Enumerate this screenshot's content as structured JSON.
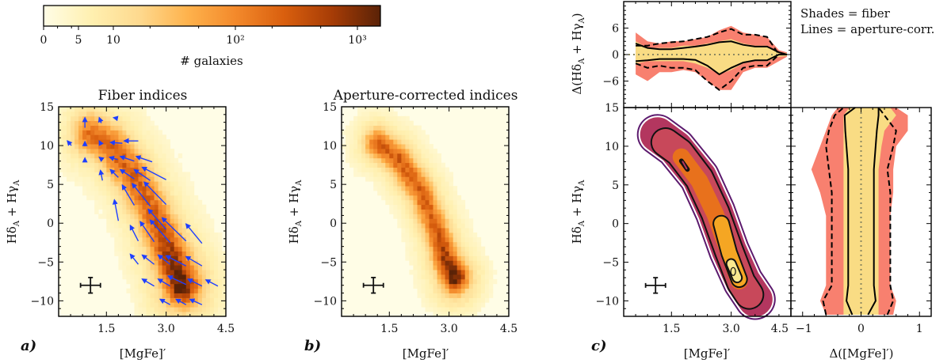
{
  "colorbar": {
    "label": "# galaxies",
    "scale": "symlog",
    "range": [
      0,
      1500
    ],
    "ticks": [
      {
        "value": 0,
        "label": "0"
      },
      {
        "value": 5,
        "label": "5"
      },
      {
        "value": 10,
        "label": "10"
      },
      {
        "value": 100,
        "label": "10²"
      },
      {
        "value": 1000,
        "label": "10³"
      }
    ],
    "colors": [
      "#fffde6",
      "#fff0b0",
      "#fed98e",
      "#feb24c",
      "#f3892b",
      "#d95f0e",
      "#a63c06",
      "#5a2207"
    ]
  },
  "labels": {
    "x": "[MgFe]′",
    "y_a": "Hδ",
    "y_sub_a": "A",
    "y_b": " + Hγ",
    "y_sub_b": "A",
    "dy_open": "Δ(",
    "dy_close": ")",
    "dx": "Δ([MgFe]′)"
  },
  "titles": {
    "a": "Fiber indices",
    "b": "Aperture-corrected indices"
  },
  "panel_letters": {
    "a": "a)",
    "b": "b)",
    "c": "c)"
  },
  "legend": {
    "line1": "Shades = fiber",
    "line2": "Lines = aperture-corr."
  },
  "colors": {
    "arrow": "#1f3fff",
    "band_outer": "#f8806f",
    "band_inner": "#f9dc84",
    "contours": [
      "#5c1a6e",
      "#b3365f",
      "#c8485a",
      "#e8711c",
      "#f5a623",
      "#fbe98f"
    ]
  },
  "chart_data": [
    {
      "panel": "a",
      "type": "heatmap",
      "title": "Fiber indices",
      "xlabel": "[MgFe]′",
      "ylabel": "HδA + HγA",
      "xlim": [
        0.3,
        4.5
      ],
      "ylim": [
        -12,
        15
      ],
      "xticks": [
        {
          "v": 1.5,
          "t": "1.5"
        },
        {
          "v": 3.0,
          "t": "3.0"
        },
        {
          "v": 4.5,
          "t": "4.5"
        }
      ],
      "yticks": [
        {
          "v": 15,
          "t": "15"
        },
        {
          "v": 10,
          "t": "10"
        },
        {
          "v": 5,
          "t": "5"
        },
        {
          "v": 0,
          "t": "0"
        },
        {
          "v": -5,
          "t": "−5"
        },
        {
          "v": -10,
          "t": "−10"
        }
      ],
      "density_ridge": [
        [
          1.1,
          11.5
        ],
        [
          1.6,
          10
        ],
        [
          2.2,
          6
        ],
        [
          2.7,
          1
        ],
        [
          3.1,
          -4
        ],
        [
          3.4,
          -8
        ]
      ],
      "ridge_relative_density": [
        0.55,
        0.6,
        0.6,
        0.62,
        0.8,
        1.0
      ],
      "peak": [
        3.4,
        -8
      ],
      "error_bar": {
        "x": 1.1,
        "y": -8,
        "xerr": 0.25,
        "yerr": 1.0
      },
      "arrows": [
        [
          0.96,
          12.3,
          0,
          1.3
        ],
        [
          1.37,
          12.9,
          -0.05,
          0.7
        ],
        [
          1.78,
          13.5,
          -0.1,
          0.1
        ],
        [
          0.62,
          10.0,
          -0.1,
          0.6
        ],
        [
          0.96,
          9.9,
          0,
          0.6
        ],
        [
          1.37,
          10.1,
          -0.05,
          0.5
        ],
        [
          1.9,
          10.3,
          -0.3,
          0.1
        ],
        [
          2.3,
          10.6,
          -0.35,
          0
        ],
        [
          0.96,
          8.3,
          0,
          0.1
        ],
        [
          1.37,
          8.3,
          -0.05,
          0.2
        ],
        [
          1.78,
          8.2,
          -0.2,
          0.3
        ],
        [
          2.2,
          8.0,
          -0.35,
          0.6
        ],
        [
          2.65,
          7.9,
          -0.4,
          0.7
        ],
        [
          1.4,
          5.5,
          -0.05,
          1.3
        ],
        [
          1.8,
          5.9,
          -0.2,
          1.0
        ],
        [
          2.2,
          5.7,
          -0.35,
          1.2
        ],
        [
          2.6,
          5.5,
          -0.4,
          1.4
        ],
        [
          3.0,
          5.6,
          -0.6,
          1.6
        ],
        [
          1.8,
          0.3,
          -0.1,
          2.7
        ],
        [
          2.2,
          2.3,
          -0.3,
          2.6
        ],
        [
          2.6,
          2.2,
          -0.45,
          2.9
        ],
        [
          3.0,
          2.4,
          -0.55,
          2.9
        ],
        [
          3.0,
          -0.8,
          -0.45,
          2.6
        ],
        [
          2.3,
          -2.3,
          -0.2,
          2.0
        ],
        [
          2.7,
          -2.4,
          -0.35,
          2.6
        ],
        [
          3.1,
          -2.5,
          -0.5,
          2.9
        ],
        [
          3.5,
          -2.3,
          -0.6,
          3.0
        ],
        [
          3.9,
          -2.6,
          -0.4,
          2.5
        ],
        [
          2.3,
          -5.3,
          -0.2,
          1.3
        ],
        [
          2.7,
          -5.3,
          -0.3,
          1.2
        ],
        [
          3.1,
          -5.3,
          -0.3,
          1.2
        ],
        [
          3.5,
          -5.5,
          -0.5,
          1.3
        ],
        [
          3.9,
          -5.5,
          -0.4,
          1.2
        ],
        [
          2.7,
          -8.1,
          -0.3,
          0.9
        ],
        [
          3.1,
          -8.1,
          -0.3,
          0.9
        ],
        [
          3.5,
          -7.9,
          -0.45,
          1.1
        ],
        [
          3.9,
          -8.1,
          -0.35,
          0.9
        ],
        [
          4.3,
          -8.1,
          -0.3,
          0.8
        ],
        [
          3.1,
          -10.5,
          -0.25,
          0.7
        ],
        [
          3.5,
          -10.5,
          -0.25,
          0.7
        ],
        [
          3.9,
          -10.5,
          -0.3,
          0.7
        ]
      ]
    },
    {
      "panel": "b",
      "type": "heatmap",
      "title": "Aperture-corrected indices",
      "xlabel": "[MgFe]′",
      "ylabel": "HδA + HγA",
      "xlim": [
        0.3,
        4.5
      ],
      "ylim": [
        -12,
        15
      ],
      "density_ridge": [
        [
          1.2,
          10.3
        ],
        [
          1.7,
          8.5
        ],
        [
          2.3,
          4
        ],
        [
          2.7,
          -1
        ],
        [
          2.95,
          -5
        ],
        [
          3.15,
          -7
        ]
      ],
      "ridge_relative_density": [
        0.6,
        0.62,
        0.6,
        0.62,
        0.8,
        1.0
      ],
      "peak": [
        3.1,
        -6.3
      ],
      "error_bar": {
        "x": 1.1,
        "y": -8,
        "xerr": 0.25,
        "yerr": 1.0
      }
    },
    {
      "panel": "c",
      "type": "contour",
      "xlabel": "[MgFe]′",
      "ylabel": "HδA + HγA",
      "xlim": [
        0.3,
        4.5
      ],
      "ylim": [
        -12,
        15
      ],
      "density_ridge": [
        [
          1.15,
          11.5
        ],
        [
          1.6,
          9.8
        ],
        [
          2.2,
          6
        ],
        [
          2.6,
          1.5
        ],
        [
          2.95,
          -3.5
        ],
        [
          3.3,
          -7.5
        ],
        [
          3.6,
          -9.8
        ]
      ],
      "peak": [
        3.05,
        -6.2
      ],
      "error_bar": {
        "x": 1.1,
        "y": -8,
        "xerr": 0.25,
        "yerr": 1.0
      }
    },
    {
      "panel": "c-top",
      "type": "area",
      "ylabel": "Δ(HδA + HγA)",
      "xlim": [
        0.3,
        4.5
      ],
      "ylim": [
        -12,
        12
      ],
      "yticks": [
        {
          "v": 6,
          "t": "6"
        },
        {
          "v": 0,
          "t": "0"
        },
        {
          "v": -6,
          "t": "−6"
        }
      ],
      "x": [
        0.6,
        0.9,
        1.2,
        1.5,
        1.8,
        2.1,
        2.4,
        2.7,
        3.0,
        3.3,
        3.6,
        3.9,
        4.2,
        4.4
      ],
      "fiber_outer": {
        "upper": [
          5,
          3,
          2.5,
          3,
          3,
          3.5,
          4,
          5.5,
          6.5,
          5,
          4.5,
          4,
          1,
          0.5
        ],
        "lower": [
          -4.5,
          -6,
          -4,
          -4,
          -3.5,
          -4,
          -6,
          -8,
          -8,
          -4,
          -3,
          -3,
          -1.5,
          -0.5
        ]
      },
      "fiber_inner": {
        "upper": [
          3,
          1.5,
          1.5,
          1.5,
          2,
          2,
          2.5,
          3,
          3.5,
          2.5,
          2,
          2,
          0.5,
          0.3
        ],
        "lower": [
          -2,
          -1.5,
          -1.5,
          -1.5,
          -1.5,
          -2,
          -3,
          -4.5,
          -3.5,
          -2,
          -1.5,
          -1.5,
          -0.5,
          -0.3
        ]
      },
      "aperture_inner": {
        "upper": [
          2.5,
          1.5,
          1.2,
          1.2,
          1.5,
          1.8,
          2.2,
          2.8,
          3,
          2.2,
          1.8,
          1.8,
          0.5,
          0
        ],
        "lower": [
          -1.5,
          -1.3,
          -1,
          -1,
          -1,
          -1.2,
          -2.5,
          -4.5,
          -3,
          -1.8,
          -1.3,
          -1.3,
          0,
          0
        ]
      },
      "aperture_outer": {
        "upper": [
          2,
          2,
          2.5,
          2.8,
          3,
          3.5,
          4,
          5,
          5.8,
          4.5,
          4.5,
          4,
          0,
          0
        ],
        "lower": [
          -2,
          -3,
          -2.5,
          -3,
          -3,
          -3.5,
          -6,
          -8,
          -6,
          -3,
          -2.5,
          -2.5,
          0,
          0
        ]
      }
    },
    {
      "panel": "c-right",
      "type": "area",
      "xlabel": "Δ([MgFe]′)",
      "xlim": [
        -1.2,
        1.2
      ],
      "ylim": [
        -12,
        15
      ],
      "xticks": [
        {
          "v": -1,
          "t": "−1"
        },
        {
          "v": 0,
          "t": "0"
        },
        {
          "v": 1,
          "t": "1"
        }
      ],
      "y": [
        -11.8,
        -10,
        -8,
        -5,
        -2,
        1,
        4,
        7,
        10,
        12,
        14,
        15
      ],
      "fiber_outer": {
        "upper": [
          0.55,
          0.6,
          0.5,
          0.5,
          0.5,
          0.5,
          0.55,
          0.55,
          0.6,
          0.8,
          0.8,
          0.6
        ],
        "lower": [
          -0.6,
          -0.7,
          -0.6,
          -0.6,
          -0.6,
          -0.6,
          -0.7,
          -0.85,
          -0.7,
          -0.6,
          -0.5,
          -0.4
        ]
      },
      "fiber_inner": {
        "upper": [
          0.3,
          0.3,
          0.3,
          0.3,
          0.3,
          0.3,
          0.3,
          0.3,
          0.35,
          0.4,
          0.6,
          0.5
        ],
        "lower": [
          -0.3,
          -0.3,
          -0.3,
          -0.3,
          -0.3,
          -0.3,
          -0.3,
          -0.3,
          -0.3,
          -0.3,
          -0.3,
          -0.2
        ]
      },
      "aperture_inner": {
        "upper": [
          0.12,
          0.25,
          0.22,
          0.22,
          0.22,
          0.22,
          0.22,
          0.22,
          0.25,
          0.27,
          0.3,
          0.3
        ],
        "lower": [
          -0.15,
          -0.25,
          -0.22,
          -0.22,
          -0.22,
          -0.22,
          -0.22,
          -0.22,
          -0.25,
          -0.27,
          -0.28,
          -0.1
        ]
      },
      "aperture_outer": {
        "upper": [
          0.45,
          0.55,
          0.5,
          0.5,
          0.5,
          0.5,
          0.5,
          0.45,
          0.55,
          0.6,
          0.4,
          0.3
        ],
        "lower": [
          -0.6,
          -0.65,
          -0.5,
          -0.5,
          -0.5,
          -0.5,
          -0.5,
          -0.55,
          -0.6,
          -0.55,
          -0.45,
          -0.3
        ]
      }
    }
  ]
}
